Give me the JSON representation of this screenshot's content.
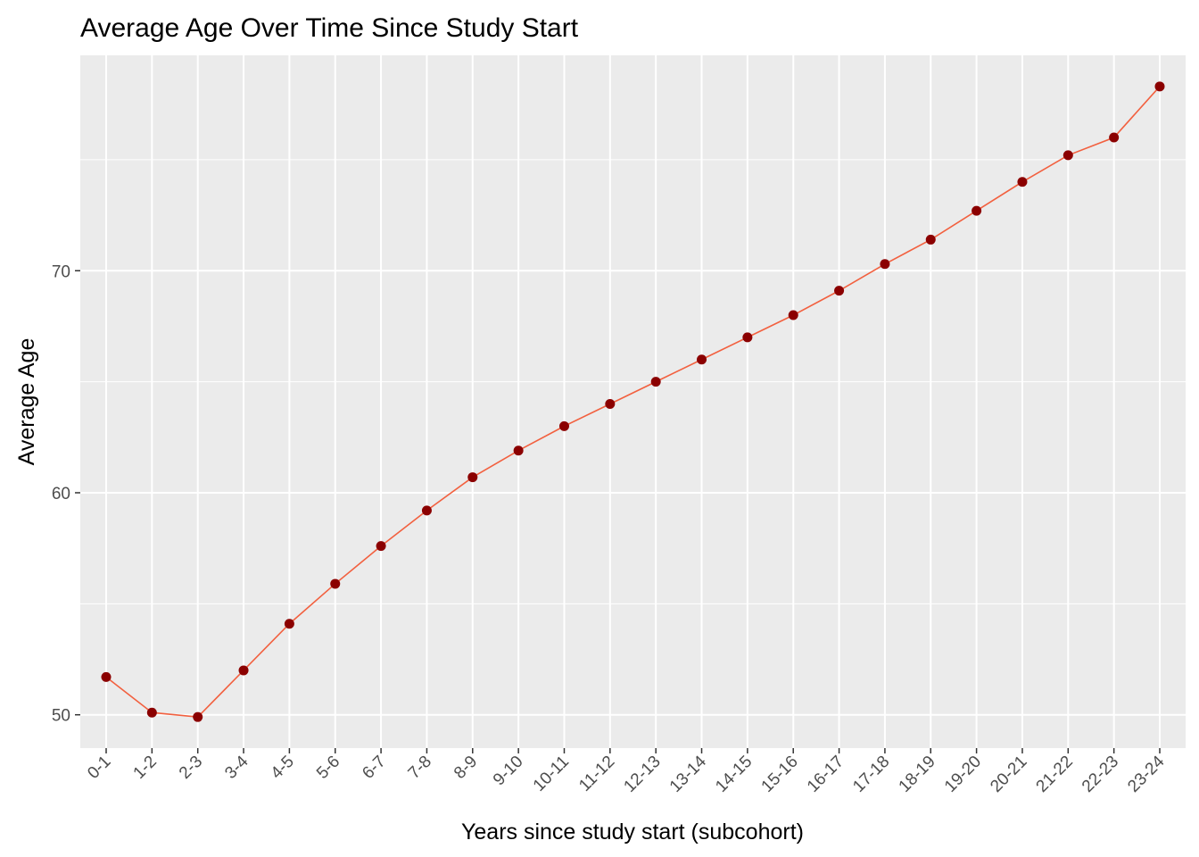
{
  "chart_data": {
    "type": "line",
    "title": "Average Age Over Time Since Study Start",
    "xlabel": "Years since study start (subcohort)",
    "ylabel": "Average Age",
    "categories": [
      "0-1",
      "1-2",
      "2-3",
      "3-4",
      "4-5",
      "5-6",
      "6-7",
      "7-8",
      "8-9",
      "9-10",
      "10-11",
      "11-12",
      "12-13",
      "13-14",
      "14-15",
      "15-16",
      "16-17",
      "17-18",
      "18-19",
      "19-20",
      "20-21",
      "21-22",
      "22-23",
      "23-24"
    ],
    "series": [
      {
        "values": [
          51.7,
          50.1,
          49.9,
          52.0,
          54.1,
          55.9,
          57.6,
          59.2,
          60.7,
          61.9,
          63.0,
          64.0,
          65.0,
          66.0,
          67.0,
          68.0,
          69.1,
          70.3,
          71.4,
          72.7,
          74.0,
          75.2,
          76.0,
          78.3
        ]
      }
    ],
    "yticks": [
      50,
      60,
      70
    ],
    "ylim": [
      48.5,
      79.7
    ],
    "grid": true,
    "colors": {
      "panel": "#ebebeb",
      "grid_major": "#ffffff",
      "line": "#f2603f",
      "point": "#8b0000"
    }
  }
}
